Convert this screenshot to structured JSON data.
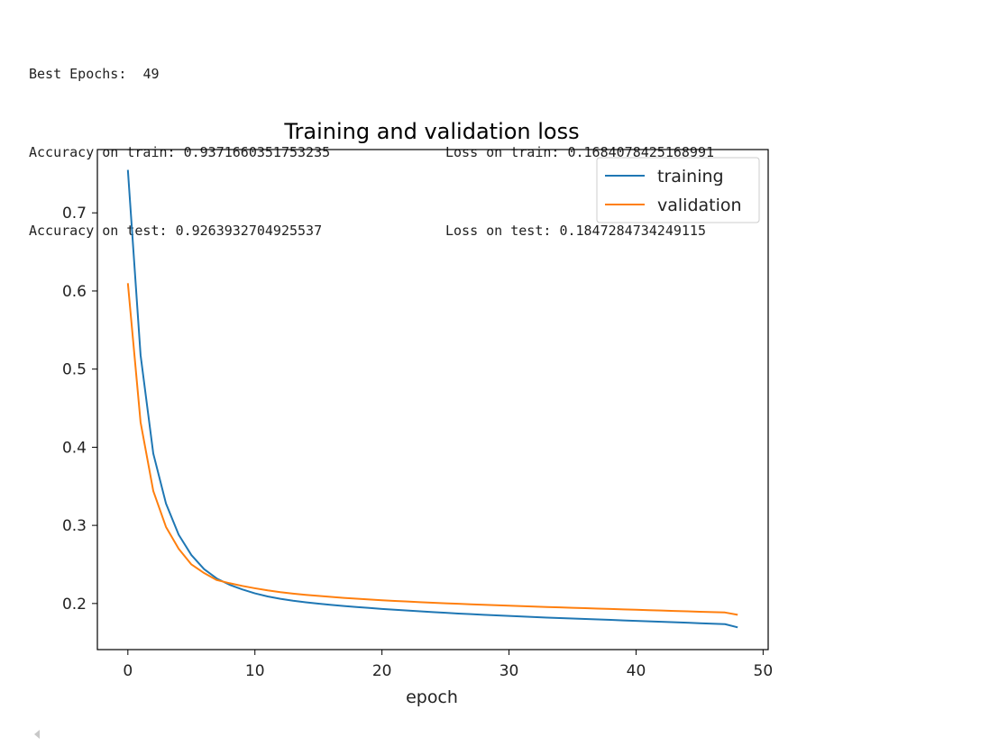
{
  "output": {
    "best_epochs_label": "Best Epochs:",
    "best_epochs_value": "49",
    "train_accuracy_label": "Accuracy on train:",
    "train_accuracy_value": "0.9371660351753235",
    "train_loss_label": "Loss on train:",
    "train_loss_value": "0.1684078425168991",
    "test_accuracy_label": "Accuracy on test:",
    "test_accuracy_value": "0.9263932704925537",
    "test_loss_label": "Loss on test:",
    "test_loss_value": "0.1847284734249115"
  },
  "chart_data": {
    "type": "line",
    "title": "Training and validation loss",
    "xlabel": "epoch",
    "ylabel": "",
    "xlim": [
      -2.4,
      50.4
    ],
    "ylim": [
      0.141,
      0.781
    ],
    "xticks": [
      0,
      10,
      20,
      30,
      40,
      50
    ],
    "yticks": [
      0.2,
      0.3,
      0.4,
      0.5,
      0.6,
      0.7
    ],
    "xtick_labels": [
      "0",
      "10",
      "20",
      "30",
      "40",
      "50"
    ],
    "ytick_labels": [
      "0.2",
      "0.3",
      "0.4",
      "0.5",
      "0.6",
      "0.7"
    ],
    "grid": false,
    "legend_position": "top-right",
    "x": [
      0,
      1,
      2,
      3,
      4,
      5,
      6,
      7,
      8,
      9,
      10,
      11,
      12,
      13,
      14,
      15,
      16,
      17,
      18,
      19,
      20,
      21,
      22,
      23,
      24,
      25,
      26,
      27,
      28,
      29,
      30,
      31,
      32,
      33,
      34,
      35,
      36,
      37,
      38,
      39,
      40,
      41,
      42,
      43,
      44,
      45,
      46,
      47,
      48
    ],
    "series": [
      {
        "name": "training",
        "color": "#1f77b4",
        "values": [
          0.755,
          0.518,
          0.392,
          0.328,
          0.288,
          0.262,
          0.244,
          0.232,
          0.224,
          0.218,
          0.213,
          0.209,
          0.206,
          0.2035,
          0.2015,
          0.1998,
          0.1982,
          0.1968,
          0.1955,
          0.1943,
          0.1931,
          0.192,
          0.191,
          0.19,
          0.189,
          0.1881,
          0.1872,
          0.1864,
          0.1856,
          0.1848,
          0.1841,
          0.1834,
          0.1827,
          0.182,
          0.1814,
          0.1808,
          0.1802,
          0.1796,
          0.179,
          0.1784,
          0.1778,
          0.1772,
          0.1766,
          0.176,
          0.1754,
          0.1748,
          0.1742,
          0.1736,
          0.1695
        ]
      },
      {
        "name": "validation",
        "color": "#ff7f0e",
        "values": [
          0.61,
          0.432,
          0.344,
          0.298,
          0.27,
          0.25,
          0.239,
          0.23,
          0.226,
          0.2225,
          0.2195,
          0.2168,
          0.2145,
          0.2127,
          0.2111,
          0.2097,
          0.2084,
          0.2072,
          0.2061,
          0.2051,
          0.2042,
          0.2033,
          0.2025,
          0.2017,
          0.201,
          0.2003,
          0.1996,
          0.199,
          0.1984,
          0.1978,
          0.1972,
          0.1966,
          0.196,
          0.1955,
          0.195,
          0.1945,
          0.194,
          0.1935,
          0.193,
          0.1925,
          0.192,
          0.1915,
          0.191,
          0.1905,
          0.19,
          0.1895,
          0.189,
          0.1885,
          0.1855
        ]
      }
    ]
  }
}
